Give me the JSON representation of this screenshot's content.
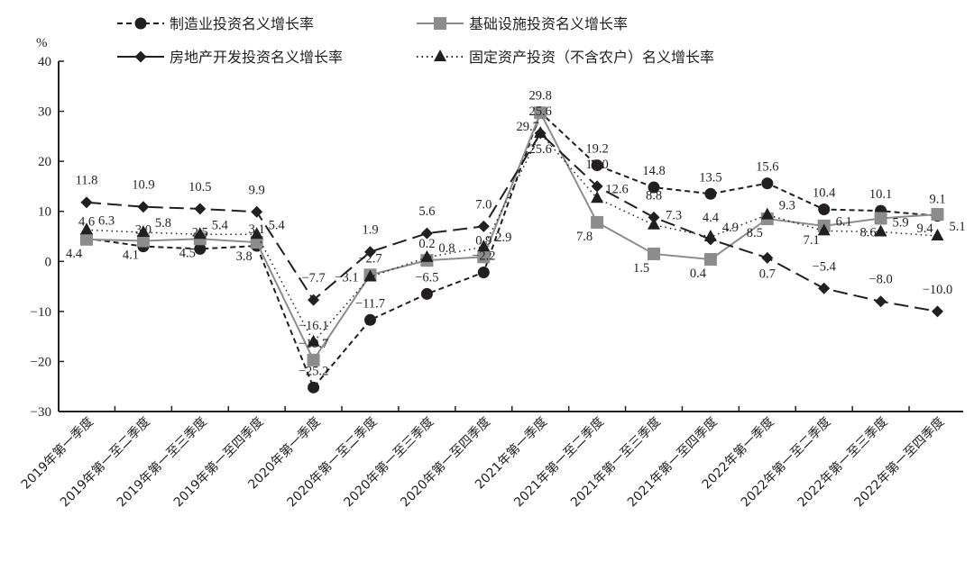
{
  "chart_data": {
    "type": "line",
    "title": "",
    "ylabel": "%",
    "xlabel": "",
    "ylim": [
      -30,
      40
    ],
    "yticks": [
      -30,
      -20,
      -10,
      0,
      10,
      20,
      30,
      40
    ],
    "grid": false,
    "legend_placement": "top",
    "categories": [
      "2019年第一季度",
      "2019年第一至二季度",
      "2019年第一至三季度",
      "2019年第一至四季度",
      "2020年第一季度",
      "2020年第一至二季度",
      "2020年第一至三季度",
      "2020年第一至四季度",
      "2021年第一季度",
      "2021年第一至二季度",
      "2021年第一至三季度",
      "2021年第一至四季度",
      "2022年第一季度",
      "2022年第一至二季度",
      "2022年第一至三季度",
      "2022年第一至四季度"
    ],
    "series": [
      {
        "name": "制造业投资名义增长率",
        "style": "short-dash",
        "marker": "circle",
        "color": "#231f20",
        "values": [
          4.6,
          3.0,
          2.5,
          3.1,
          -25.2,
          -11.7,
          -6.5,
          -2.2,
          29.8,
          19.2,
          14.8,
          13.5,
          15.6,
          10.4,
          10.1,
          9.1
        ]
      },
      {
        "name": "基础设施投资名义增长率",
        "style": "solid",
        "marker": "square",
        "color": "#8c8c8c",
        "values": [
          4.4,
          4.1,
          4.5,
          3.8,
          -19.7,
          -2.7,
          0.2,
          0.9,
          29.7,
          7.8,
          1.5,
          0.4,
          8.5,
          7.1,
          8.6,
          9.4
        ]
      },
      {
        "name": "房地产开发投资名义增长率",
        "style": "long-dash",
        "marker": "diamond",
        "color": "#231f20",
        "values": [
          11.8,
          10.9,
          10.5,
          9.9,
          -7.7,
          1.9,
          5.6,
          7.0,
          25.6,
          15.0,
          8.8,
          4.4,
          0.7,
          -5.4,
          -8.0,
          -10.0
        ]
      },
      {
        "name": "固定资产投资（不含农户）名义增长率",
        "style": "dotted",
        "marker": "triangle",
        "color": "#231f20",
        "values": [
          6.3,
          5.8,
          5.4,
          5.4,
          -16.1,
          -3.1,
          0.8,
          2.9,
          25.6,
          12.6,
          7.3,
          4.9,
          9.3,
          6.1,
          5.9,
          5.1
        ]
      }
    ]
  }
}
